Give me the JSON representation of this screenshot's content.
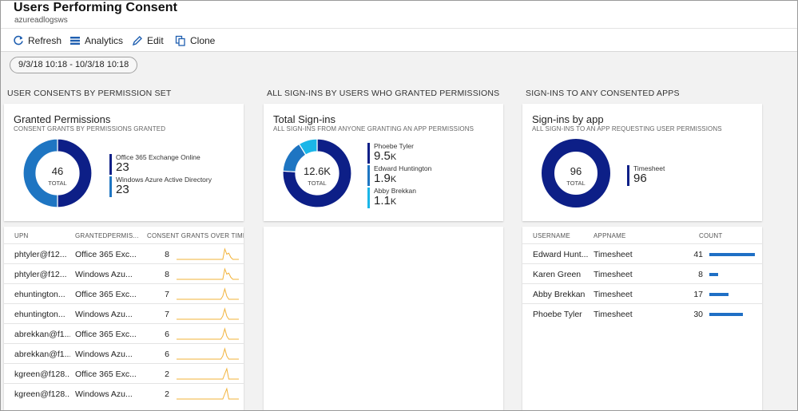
{
  "header": {
    "title": "Users Performing Consent",
    "subtitle": "azureadlogsws"
  },
  "toolbar": {
    "refresh": "Refresh",
    "analytics": "Analytics",
    "edit": "Edit",
    "clone": "Clone"
  },
  "time_range": "9/3/18 10:18 - 10/3/18 10:18",
  "colors": {
    "accent": "#0078d4",
    "dark_blue": "#0d1f87",
    "mid_blue": "#1e75c2",
    "light_blue": "#1ab6e8",
    "spark": "#f2b33a"
  },
  "sections": [
    {
      "label": "USER CONSENTS BY PERMISSION SET",
      "tile": {
        "title": "Granted Permissions",
        "subtitle": "CONSENT GRANTS BY PERMISSIONS GRANTED",
        "center_value": "46",
        "center_label": "TOTAL",
        "legend": [
          {
            "name": "Office 365 Exchange Online",
            "value": "23",
            "color": "#0d1f87"
          },
          {
            "name": "Windows Azure Active Directory",
            "value": "23",
            "color": "#1e75c2"
          }
        ]
      }
    },
    {
      "label": "ALL SIGN-INS BY USERS WHO GRANTED PERMISSIONS",
      "tile": {
        "title": "Total Sign-ins",
        "subtitle": "ALL SIGN-INS FROM ANYONE GRANTING AN APP PERMISSIONS",
        "center_value": "12.6K",
        "center_label": "TOTAL",
        "legend": [
          {
            "name": "Phoebe Tyler",
            "value": "9.5",
            "unit": "K",
            "color": "#0d1f87"
          },
          {
            "name": "Edward Huntington",
            "value": "1.9",
            "unit": "K",
            "color": "#1e75c2"
          },
          {
            "name": "Abby Brekkan",
            "value": "1.1",
            "unit": "K",
            "color": "#1ab6e8"
          }
        ]
      }
    },
    {
      "label": "SIGN-INS TO ANY CONSENTED APPS",
      "tile": {
        "title": "Sign-ins by app",
        "subtitle": "ALL SIGN-INS TO AN APP REQUESTING USER PERMISSIONS",
        "center_value": "96",
        "center_label": "TOTAL",
        "legend": [
          {
            "name": "Timesheet",
            "value": "96",
            "color": "#0d1f87"
          }
        ]
      }
    }
  ],
  "chart_data": [
    {
      "type": "pie",
      "title": "Granted Permissions",
      "categories": [
        "Office 365 Exchange Online",
        "Windows Azure Active Directory"
      ],
      "values": [
        23,
        23
      ]
    },
    {
      "type": "pie",
      "title": "Total Sign-ins",
      "categories": [
        "Phoebe Tyler",
        "Edward Huntington",
        "Abby Brekkan"
      ],
      "values": [
        9.5,
        1.9,
        1.1
      ]
    },
    {
      "type": "pie",
      "title": "Sign-ins by app",
      "categories": [
        "Timesheet"
      ],
      "values": [
        96
      ]
    }
  ],
  "consent_table": {
    "headers": [
      "UPN",
      "GRANTEDPERMIS...",
      "CONSENT GRANTS OVER TIME"
    ],
    "rows": [
      {
        "upn": "phtyler@f12...",
        "perm": "Office 365 Exc...",
        "count": "8",
        "spark": [
          0,
          0,
          0,
          0,
          0,
          0,
          0,
          0,
          0,
          0,
          0,
          0,
          0,
          0,
          0,
          0,
          0,
          0,
          0,
          0,
          0,
          0,
          0,
          0,
          1,
          0.5,
          0.6,
          0.2,
          0,
          0,
          0,
          0
        ]
      },
      {
        "upn": "phtyler@f12...",
        "perm": "Windows Azu...",
        "count": "8",
        "spark": [
          0,
          0,
          0,
          0,
          0,
          0,
          0,
          0,
          0,
          0,
          0,
          0,
          0,
          0,
          0,
          0,
          0,
          0,
          0,
          0,
          0,
          0,
          0,
          0,
          1,
          0.5,
          0.6,
          0.2,
          0,
          0,
          0,
          0
        ]
      },
      {
        "upn": "ehuntington...",
        "perm": "Office 365 Exc...",
        "count": "7",
        "spark": [
          0,
          0,
          0,
          0,
          0,
          0,
          0,
          0,
          0,
          0,
          0,
          0,
          0,
          0,
          0,
          0,
          0,
          0,
          0,
          0,
          0,
          0,
          0,
          0.3,
          1,
          0.3,
          0,
          0,
          0,
          0,
          0,
          0
        ]
      },
      {
        "upn": "ehuntington...",
        "perm": "Windows Azu...",
        "count": "7",
        "spark": [
          0,
          0,
          0,
          0,
          0,
          0,
          0,
          0,
          0,
          0,
          0,
          0,
          0,
          0,
          0,
          0,
          0,
          0,
          0,
          0,
          0,
          0,
          0,
          0.3,
          1,
          0.3,
          0,
          0,
          0,
          0,
          0,
          0
        ]
      },
      {
        "upn": "abrekkan@f1...",
        "perm": "Office 365 Exc...",
        "count": "6",
        "spark": [
          0,
          0,
          0,
          0,
          0,
          0,
          0,
          0,
          0,
          0,
          0,
          0,
          0,
          0,
          0,
          0,
          0,
          0,
          0,
          0,
          0,
          0,
          0,
          0.3,
          1,
          0.3,
          0,
          0,
          0,
          0,
          0,
          0
        ]
      },
      {
        "upn": "abrekkan@f1...",
        "perm": "Windows Azu...",
        "count": "6",
        "spark": [
          0,
          0,
          0,
          0,
          0,
          0,
          0,
          0,
          0,
          0,
          0,
          0,
          0,
          0,
          0,
          0,
          0,
          0,
          0,
          0,
          0,
          0,
          0,
          0.3,
          1,
          0.3,
          0,
          0,
          0,
          0,
          0,
          0
        ]
      },
      {
        "upn": "kgreen@f128...",
        "perm": "Office 365 Exc...",
        "count": "2",
        "spark": [
          0,
          0,
          0,
          0,
          0,
          0,
          0,
          0,
          0,
          0,
          0,
          0,
          0,
          0,
          0,
          0,
          0,
          0,
          0,
          0,
          0,
          0,
          0,
          0,
          0.5,
          1,
          0,
          0,
          0,
          0,
          0,
          0
        ]
      },
      {
        "upn": "kgreen@f128...",
        "perm": "Windows Azu...",
        "count": "2",
        "spark": [
          0,
          0,
          0,
          0,
          0,
          0,
          0,
          0,
          0,
          0,
          0,
          0,
          0,
          0,
          0,
          0,
          0,
          0,
          0,
          0,
          0,
          0,
          0,
          0,
          0.5,
          1,
          0,
          0,
          0,
          0,
          0,
          0
        ]
      }
    ]
  },
  "apps_table": {
    "headers": [
      "USERNAME",
      "APPNAME",
      "COUNT"
    ],
    "max": 41,
    "rows": [
      {
        "user": "Edward Hunt...",
        "app": "Timesheet",
        "count": "41"
      },
      {
        "user": "Karen Green",
        "app": "Timesheet",
        "count": "8"
      },
      {
        "user": "Abby Brekkan",
        "app": "Timesheet",
        "count": "17"
      },
      {
        "user": "Phoebe Tyler",
        "app": "Timesheet",
        "count": "30"
      }
    ]
  }
}
